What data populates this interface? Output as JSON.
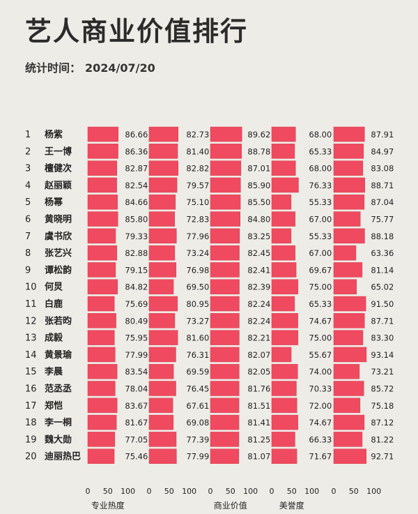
{
  "title": "艺人商业价值排行",
  "stat": {
    "label": "统计时间：",
    "date": "2024/07/20"
  },
  "colors": {
    "bar": "#ef4a5f",
    "bar_stroke": "#d93a50",
    "background": "#eeece7"
  },
  "chart_data": {
    "type": "bar",
    "orientation": "horizontal",
    "panels": [
      {
        "xlabel": "专业热度",
        "xlim": [
          0,
          100
        ]
      },
      {
        "xlabel": "",
        "xlim": [
          0,
          100
        ]
      },
      {
        "xlabel": "商业价值",
        "xlim": [
          0,
          100
        ]
      },
      {
        "xlabel": "美誉度",
        "xlim": [
          0,
          100
        ]
      },
      {
        "xlabel": "",
        "xlim": [
          0,
          100
        ]
      }
    ],
    "xticks": [
      0,
      50,
      100
    ],
    "rows": [
      {
        "rank": "1",
        "name": "杨紫",
        "values": [
          86.66,
          82.73,
          89.62,
          68.0,
          87.91
        ]
      },
      {
        "rank": "2",
        "name": "王一博",
        "values": [
          86.36,
          81.4,
          88.78,
          65.33,
          84.97
        ]
      },
      {
        "rank": "3",
        "name": "檀健次",
        "values": [
          82.87,
          82.82,
          87.01,
          68.0,
          83.08
        ]
      },
      {
        "rank": "4",
        "name": "赵丽颖",
        "values": [
          82.54,
          79.57,
          85.9,
          76.33,
          88.71
        ]
      },
      {
        "rank": "5",
        "name": "杨幂",
        "values": [
          84.66,
          75.1,
          85.5,
          55.33,
          87.04
        ]
      },
      {
        "rank": "6",
        "name": "黄晓明",
        "values": [
          85.8,
          72.83,
          84.8,
          67.0,
          75.77
        ]
      },
      {
        "rank": "7",
        "name": "虞书欣",
        "values": [
          79.33,
          77.96,
          83.25,
          55.33,
          88.18
        ]
      },
      {
        "rank": "8",
        "name": "张艺兴",
        "values": [
          82.88,
          73.24,
          82.45,
          67.0,
          63.36
        ]
      },
      {
        "rank": "9",
        "name": "谭松韵",
        "values": [
          79.15,
          76.98,
          82.41,
          69.67,
          81.14
        ]
      },
      {
        "rank": "10",
        "name": "何炅",
        "values": [
          84.82,
          69.5,
          82.39,
          75.0,
          65.02
        ]
      },
      {
        "rank": "11",
        "name": "白鹿",
        "values": [
          75.69,
          80.95,
          82.24,
          65.33,
          91.5
        ]
      },
      {
        "rank": "12",
        "name": "张若昀",
        "values": [
          80.49,
          73.27,
          82.24,
          74.67,
          87.71
        ]
      },
      {
        "rank": "13",
        "name": "成毅",
        "values": [
          75.95,
          81.6,
          82.21,
          75.0,
          83.3
        ]
      },
      {
        "rank": "14",
        "name": "黄景瑜",
        "values": [
          77.99,
          76.31,
          82.07,
          55.67,
          93.14
        ]
      },
      {
        "rank": "15",
        "name": "李晨",
        "values": [
          83.54,
          69.59,
          82.05,
          74.0,
          73.21
        ]
      },
      {
        "rank": "16",
        "name": "范丞丞",
        "values": [
          78.04,
          76.45,
          81.76,
          70.33,
          85.72
        ]
      },
      {
        "rank": "17",
        "name": "郑恺",
        "values": [
          83.67,
          67.61,
          81.51,
          72.0,
          75.18
        ]
      },
      {
        "rank": "18",
        "name": "李一桐",
        "values": [
          81.67,
          69.08,
          81.41,
          74.67,
          87.12
        ]
      },
      {
        "rank": "19",
        "name": "魏大勋",
        "values": [
          77.05,
          77.39,
          81.25,
          66.33,
          81.22
        ]
      },
      {
        "rank": "20",
        "name": "迪丽热巴",
        "values": [
          75.46,
          77.99,
          81.07,
          71.67,
          92.71
        ]
      }
    ]
  }
}
